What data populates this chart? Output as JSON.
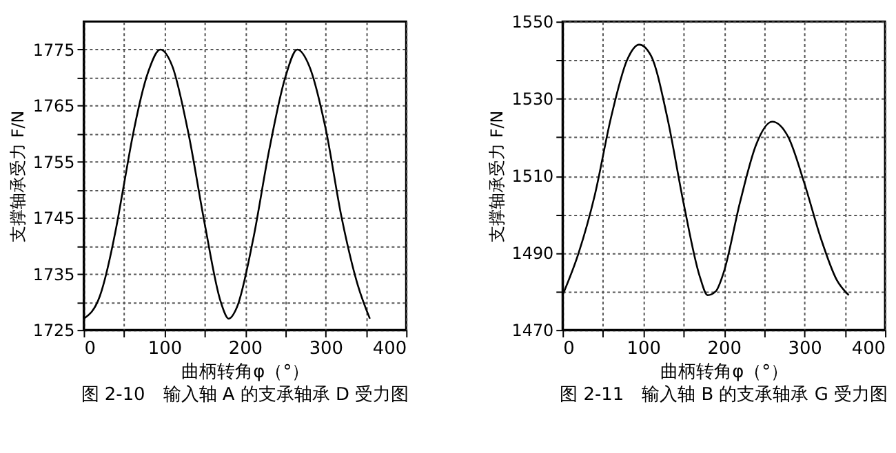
{
  "chart_data": [
    {
      "type": "line",
      "title": "图 2-10　输入轴 A 的支承轴承 D 受力图",
      "xlabel": "曲柄转角φ（°）",
      "ylabel": "支撑轴承受力 F/N",
      "x": [
        0,
        20,
        40,
        50,
        60,
        80,
        95,
        110,
        130,
        150,
        170,
        180,
        190,
        210,
        230,
        250,
        265,
        280,
        300,
        320,
        340,
        355
      ],
      "series": [
        {
          "color": "#000000",
          "values": [
            1727,
            1731,
            1743,
            1751,
            1759,
            1771,
            1775,
            1772,
            1760,
            1744,
            1730,
            1727,
            1729,
            1741,
            1757,
            1770,
            1775,
            1772,
            1761,
            1745,
            1733,
            1727
          ]
        }
      ],
      "xlim": [
        0,
        400
      ],
      "xticks": [
        0,
        {
          "value": 50,
          "label": null
        },
        100,
        {
          "value": 150,
          "label": null
        },
        200,
        {
          "value": 250,
          "label": null
        },
        300,
        {
          "value": 350,
          "label": null
        },
        400
      ],
      "ylim": [
        1725,
        1780
      ],
      "yticks": [
        1725,
        {
          "value": 1730,
          "label": null
        },
        1735,
        {
          "value": 1740,
          "label": null
        },
        1745,
        {
          "value": 1750,
          "label": null
        },
        1755,
        {
          "value": 1760,
          "label": null
        },
        1765,
        {
          "value": 1770,
          "label": null
        },
        1775
      ],
      "grid": true,
      "line_style": "solid",
      "marker": "none"
    },
    {
      "type": "line",
      "title": "图 2-11　输入轴 B 的支承轴承 G 受力图",
      "xlabel": "曲柄转角φ（°）",
      "ylabel": "支撑轴承受力 F/N",
      "x": [
        0,
        20,
        40,
        60,
        80,
        95,
        110,
        130,
        150,
        170,
        180,
        190,
        200,
        220,
        240,
        260,
        280,
        300,
        320,
        340,
        355
      ],
      "series": [
        {
          "color": "#000000",
          "values": [
            1479,
            1490,
            1505,
            1525,
            1540,
            1544,
            1541,
            1525,
            1503,
            1484,
            1479,
            1480,
            1485,
            1503,
            1518,
            1524,
            1520,
            1508,
            1494,
            1483,
            1479
          ]
        }
      ],
      "xlim": [
        0,
        400
      ],
      "xticks": [
        0,
        {
          "value": 50,
          "label": null
        },
        100,
        {
          "value": 150,
          "label": null
        },
        200,
        {
          "value": 250,
          "label": null
        },
        300,
        {
          "value": 350,
          "label": null
        },
        400
      ],
      "ylim": [
        1470,
        1550
      ],
      "yticks": [
        1470,
        {
          "value": 1480,
          "label": null
        },
        1490,
        {
          "value": 1500,
          "label": null
        },
        1510,
        {
          "value": 1520,
          "label": null
        },
        1530,
        {
          "value": 1540,
          "label": null
        },
        1550
      ],
      "grid": true,
      "line_style": "solid",
      "marker": "none"
    }
  ]
}
